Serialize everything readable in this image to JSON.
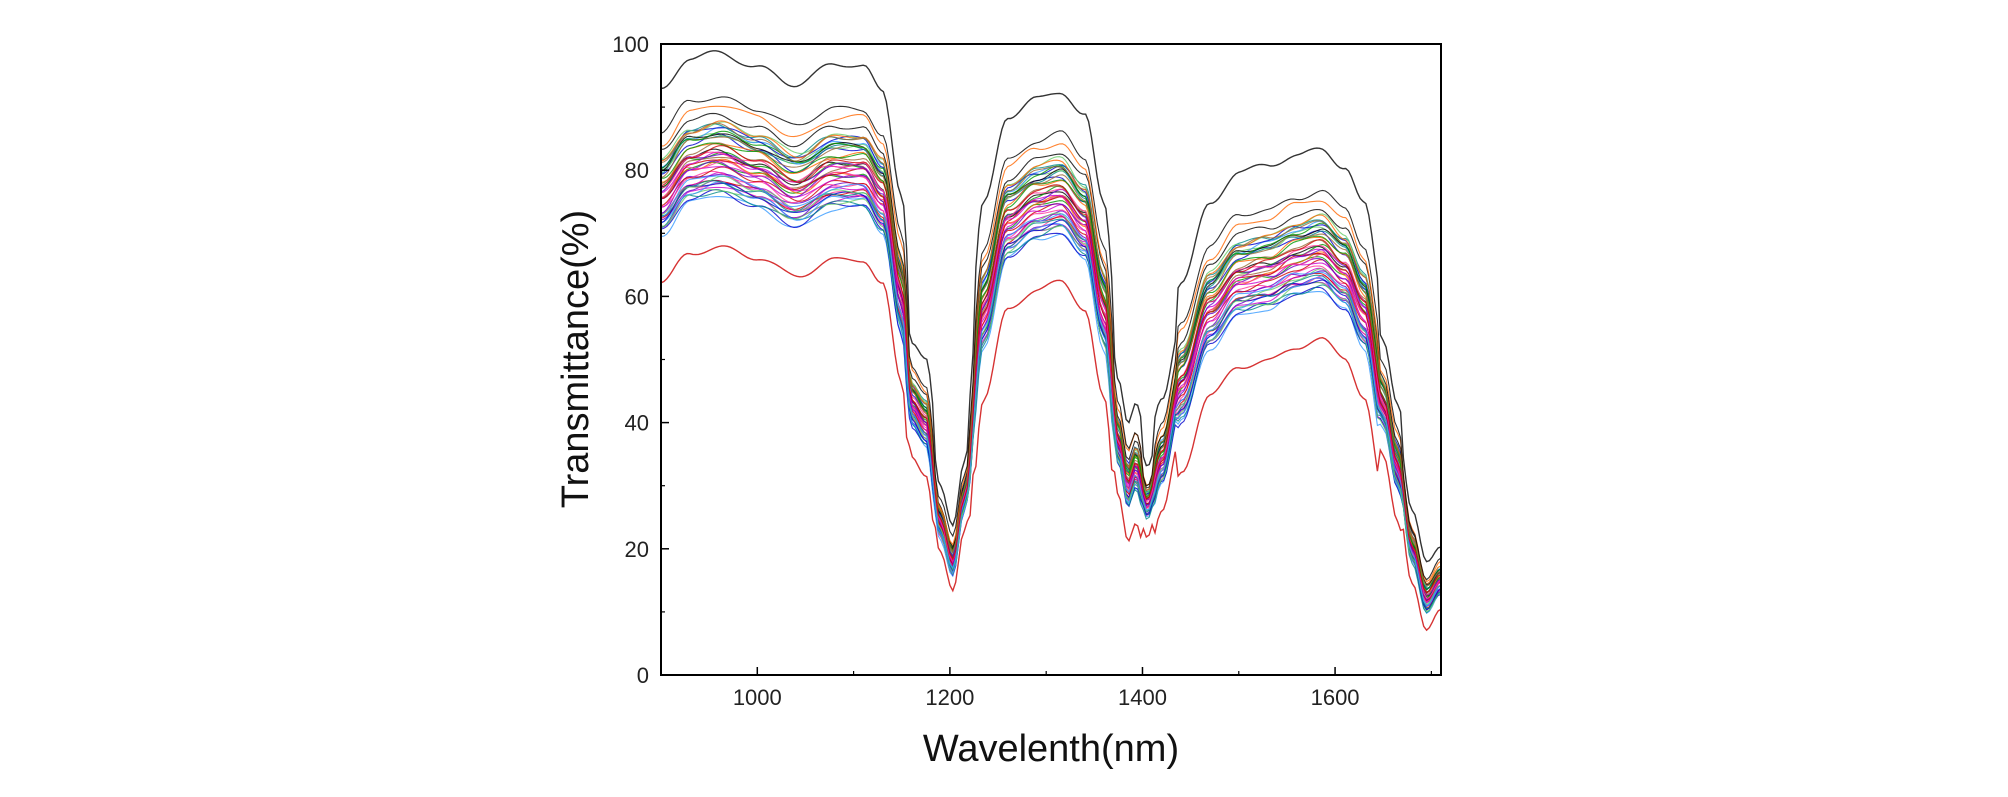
{
  "chart_data": {
    "type": "line",
    "title": "",
    "xlabel": "Wavelenth(nm)",
    "ylabel": "Transmittance(%)",
    "xlim": [
      900,
      1710
    ],
    "ylim": [
      0,
      100
    ],
    "xticks": [
      1000,
      1200,
      1400,
      1600
    ],
    "yticks": [
      0,
      20,
      40,
      60,
      80,
      100
    ],
    "xtick_labels": [
      "1000",
      "1200",
      "1400",
      "1600"
    ],
    "ytick_labels": [
      "0",
      "20",
      "40",
      "60",
      "80",
      "100"
    ],
    "grid": false,
    "legend": "none",
    "series_count": 50,
    "series_colors": [
      "#000000",
      "#cc0000",
      "#0000cc",
      "#009900",
      "#cc00cc",
      "#008888",
      "#ff6600",
      "#6600cc",
      "#66cc66",
      "#996633",
      "#ff3399",
      "#3399ff"
    ],
    "mean_spectrum": {
      "x": [
        900,
        930,
        960,
        1000,
        1040,
        1080,
        1110,
        1130,
        1150,
        1160,
        1175,
        1190,
        1203,
        1215,
        1235,
        1260,
        1290,
        1315,
        1340,
        1360,
        1375,
        1385,
        1393,
        1405,
        1420,
        1440,
        1470,
        1500,
        1530,
        1560,
        1585,
        1610,
        1630,
        1650,
        1665,
        1680,
        1695,
        1710
      ],
      "y": [
        76,
        81,
        82,
        80,
        77,
        80,
        80,
        76,
        60,
        43,
        40,
        24,
        18,
        28,
        58,
        72,
        75,
        76,
        72,
        58,
        37,
        30,
        33,
        27,
        34,
        46,
        58,
        63,
        64,
        66,
        67,
        64,
        58,
        43,
        33,
        20,
        12,
        15
      ]
    },
    "envelope": {
      "upper_offset_max": 18,
      "lower_offset_max": -14
    }
  }
}
